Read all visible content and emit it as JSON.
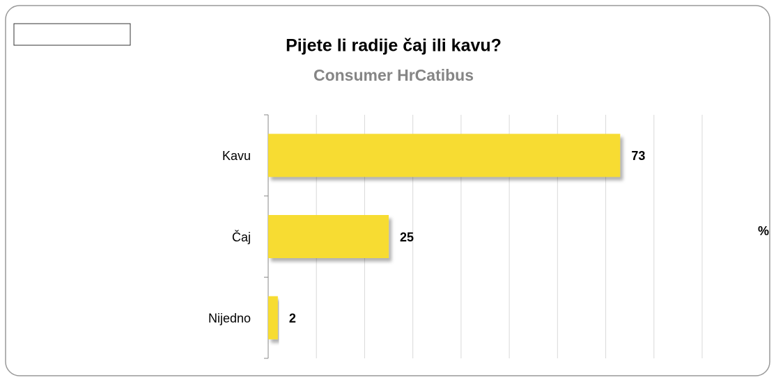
{
  "chart_data": {
    "type": "barh",
    "title": "Pijete li radije čaj ili kavu?",
    "subtitle": "Consumer HrCatibus",
    "categories": [
      "Kavu",
      "Čaj",
      "Nijedno"
    ],
    "values": [
      73,
      25,
      2
    ],
    "color": "#f7dc30",
    "x_label": "%",
    "xlim": [
      0,
      90
    ],
    "xticks": [
      0,
      10,
      20,
      30,
      40,
      50,
      60,
      70,
      80,
      90
    ],
    "grid": true
  }
}
